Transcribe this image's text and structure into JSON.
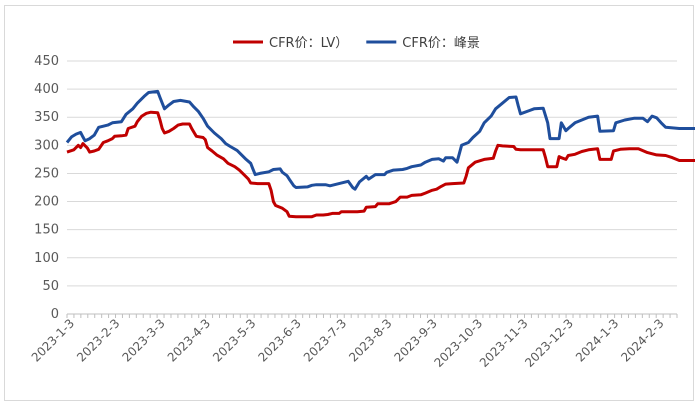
{
  "chart_data": {
    "type": "line",
    "title": "",
    "xlabel": "",
    "ylabel": "",
    "ylim": [
      0,
      450
    ],
    "yticks": [
      0,
      50,
      100,
      150,
      200,
      250,
      300,
      350,
      400,
      450
    ],
    "xtick_labels": [
      "2023-1-3",
      "2023-2-3",
      "2023-3-3",
      "2023-4-3",
      "2023-5-3",
      "2023-6-3",
      "2023-7-3",
      "2023-8-3",
      "2023-9-3",
      "2023-10-3",
      "2023-11-3",
      "2023-12-3",
      "2024-1-3",
      "2024-2-3"
    ],
    "legend_position": "top-center",
    "series": [
      {
        "name": "CFR价：LV）",
        "color": "#c00000",
        "points": [
          [
            0,
            288
          ],
          [
            0.15,
            292
          ],
          [
            0.25,
            300
          ],
          [
            0.3,
            296
          ],
          [
            0.35,
            303
          ],
          [
            0.45,
            295
          ],
          [
            0.5,
            288
          ],
          [
            0.6,
            290
          ],
          [
            0.7,
            293
          ],
          [
            0.8,
            305
          ],
          [
            0.9,
            308
          ],
          [
            1.0,
            312
          ],
          [
            1.05,
            316
          ],
          [
            1.2,
            317
          ],
          [
            1.3,
            318
          ],
          [
            1.35,
            330
          ],
          [
            1.5,
            334
          ],
          [
            1.55,
            342
          ],
          [
            1.65,
            352
          ],
          [
            1.75,
            357
          ],
          [
            1.85,
            359
          ],
          [
            2.0,
            358
          ],
          [
            2.05,
            345
          ],
          [
            2.1,
            330
          ],
          [
            2.15,
            322
          ],
          [
            2.25,
            325
          ],
          [
            2.35,
            330
          ],
          [
            2.45,
            336
          ],
          [
            2.55,
            338
          ],
          [
            2.7,
            338
          ],
          [
            2.75,
            330
          ],
          [
            2.85,
            316
          ],
          [
            3.0,
            314
          ],
          [
            3.05,
            310
          ],
          [
            3.1,
            296
          ],
          [
            3.2,
            290
          ],
          [
            3.3,
            283
          ],
          [
            3.45,
            276
          ],
          [
            3.55,
            268
          ],
          [
            3.7,
            262
          ],
          [
            3.8,
            256
          ],
          [
            3.9,
            248
          ],
          [
            4.0,
            240
          ],
          [
            4.05,
            233
          ],
          [
            4.2,
            232
          ],
          [
            4.45,
            232
          ],
          [
            4.5,
            220
          ],
          [
            4.55,
            200
          ],
          [
            4.6,
            193
          ],
          [
            4.75,
            188
          ],
          [
            4.85,
            182
          ],
          [
            4.9,
            174
          ],
          [
            5.05,
            173
          ],
          [
            5.4,
            173
          ],
          [
            5.5,
            176
          ],
          [
            5.65,
            176
          ],
          [
            5.75,
            177
          ],
          [
            5.85,
            179
          ],
          [
            6.0,
            179
          ],
          [
            6.05,
            182
          ],
          [
            6.4,
            182
          ],
          [
            6.55,
            183
          ],
          [
            6.6,
            190
          ],
          [
            6.8,
            191
          ],
          [
            6.85,
            196
          ],
          [
            7.0,
            196
          ],
          [
            7.1,
            196
          ],
          [
            7.25,
            200
          ],
          [
            7.35,
            208
          ],
          [
            7.5,
            208
          ],
          [
            7.6,
            211
          ],
          [
            7.8,
            212
          ],
          [
            7.9,
            215
          ],
          [
            8.05,
            220
          ],
          [
            8.15,
            222
          ],
          [
            8.25,
            227
          ],
          [
            8.35,
            231
          ],
          [
            8.5,
            232
          ],
          [
            8.75,
            233
          ],
          [
            8.8,
            245
          ],
          [
            8.85,
            260
          ],
          [
            9.0,
            270
          ],
          [
            9.2,
            275
          ],
          [
            9.4,
            277
          ],
          [
            9.45,
            290
          ],
          [
            9.5,
            300
          ],
          [
            9.6,
            299
          ],
          [
            9.85,
            298
          ],
          [
            9.9,
            293
          ],
          [
            10.0,
            292
          ],
          [
            10.5,
            292
          ],
          [
            10.55,
            278
          ],
          [
            10.6,
            262
          ],
          [
            10.7,
            262
          ],
          [
            10.8,
            262
          ],
          [
            10.85,
            280
          ],
          [
            10.9,
            278
          ],
          [
            11.0,
            275
          ],
          [
            11.05,
            282
          ],
          [
            11.2,
            284
          ],
          [
            11.35,
            289
          ],
          [
            11.5,
            292
          ],
          [
            11.7,
            294
          ],
          [
            11.75,
            275
          ],
          [
            12.0,
            275
          ],
          [
            12.05,
            290
          ],
          [
            12.2,
            293
          ],
          [
            12.4,
            294
          ],
          [
            12.6,
            294
          ],
          [
            12.8,
            287
          ],
          [
            13.0,
            283
          ],
          [
            13.2,
            282
          ],
          [
            13.35,
            278
          ],
          [
            13.5,
            273
          ],
          [
            14.0,
            273
          ]
        ]
      },
      {
        "name": "CFR价：峰景",
        "color": "#1f4e9c",
        "points": [
          [
            0,
            305
          ],
          [
            0.1,
            315
          ],
          [
            0.2,
            320
          ],
          [
            0.3,
            323
          ],
          [
            0.35,
            315
          ],
          [
            0.4,
            308
          ],
          [
            0.5,
            312
          ],
          [
            0.6,
            318
          ],
          [
            0.7,
            332
          ],
          [
            0.9,
            336
          ],
          [
            1.0,
            340
          ],
          [
            1.2,
            342
          ],
          [
            1.3,
            355
          ],
          [
            1.45,
            365
          ],
          [
            1.55,
            375
          ],
          [
            1.7,
            387
          ],
          [
            1.8,
            394
          ],
          [
            2.0,
            396
          ],
          [
            2.05,
            385
          ],
          [
            2.15,
            365
          ],
          [
            2.25,
            372
          ],
          [
            2.35,
            378
          ],
          [
            2.5,
            380
          ],
          [
            2.7,
            377
          ],
          [
            2.8,
            368
          ],
          [
            2.9,
            360
          ],
          [
            3.0,
            348
          ],
          [
            3.1,
            334
          ],
          [
            3.25,
            322
          ],
          [
            3.4,
            312
          ],
          [
            3.5,
            303
          ],
          [
            3.6,
            298
          ],
          [
            3.75,
            291
          ],
          [
            3.85,
            283
          ],
          [
            3.95,
            275
          ],
          [
            4.05,
            268
          ],
          [
            4.1,
            258
          ],
          [
            4.15,
            248
          ],
          [
            4.25,
            250
          ],
          [
            4.45,
            253
          ],
          [
            4.55,
            257
          ],
          [
            4.7,
            258
          ],
          [
            4.75,
            252
          ],
          [
            4.85,
            246
          ],
          [
            4.9,
            240
          ],
          [
            5.0,
            228
          ],
          [
            5.05,
            225
          ],
          [
            5.3,
            226
          ],
          [
            5.4,
            229
          ],
          [
            5.5,
            230
          ],
          [
            5.7,
            230
          ],
          [
            5.8,
            228
          ],
          [
            6.0,
            232
          ],
          [
            6.2,
            236
          ],
          [
            6.3,
            225
          ],
          [
            6.35,
            222
          ],
          [
            6.45,
            235
          ],
          [
            6.6,
            245
          ],
          [
            6.65,
            240
          ],
          [
            6.8,
            248
          ],
          [
            7.0,
            248
          ],
          [
            7.05,
            252
          ],
          [
            7.2,
            256
          ],
          [
            7.4,
            257
          ],
          [
            7.5,
            259
          ],
          [
            7.6,
            262
          ],
          [
            7.8,
            265
          ],
          [
            7.9,
            270
          ],
          [
            8.05,
            275
          ],
          [
            8.2,
            276
          ],
          [
            8.3,
            272
          ],
          [
            8.35,
            278
          ],
          [
            8.5,
            278
          ],
          [
            8.6,
            270
          ],
          [
            8.65,
            285
          ],
          [
            8.7,
            300
          ],
          [
            8.85,
            305
          ],
          [
            8.95,
            314
          ],
          [
            9.1,
            325
          ],
          [
            9.2,
            340
          ],
          [
            9.35,
            352
          ],
          [
            9.45,
            365
          ],
          [
            9.6,
            375
          ],
          [
            9.75,
            385
          ],
          [
            9.9,
            386
          ],
          [
            9.95,
            370
          ],
          [
            10.0,
            356
          ],
          [
            10.2,
            362
          ],
          [
            10.3,
            365
          ],
          [
            10.5,
            366
          ],
          [
            10.6,
            340
          ],
          [
            10.65,
            312
          ],
          [
            10.85,
            312
          ],
          [
            10.9,
            340
          ],
          [
            11.0,
            326
          ],
          [
            11.05,
            330
          ],
          [
            11.2,
            340
          ],
          [
            11.35,
            345
          ],
          [
            11.5,
            350
          ],
          [
            11.7,
            352
          ],
          [
            11.75,
            325
          ],
          [
            12.05,
            326
          ],
          [
            12.1,
            340
          ],
          [
            12.3,
            345
          ],
          [
            12.5,
            348
          ],
          [
            12.7,
            348
          ],
          [
            12.8,
            342
          ],
          [
            12.9,
            352
          ],
          [
            13.0,
            349
          ],
          [
            13.1,
            340
          ],
          [
            13.2,
            332
          ],
          [
            13.35,
            331
          ],
          [
            13.5,
            330
          ],
          [
            14.0,
            330
          ]
        ]
      }
    ]
  }
}
